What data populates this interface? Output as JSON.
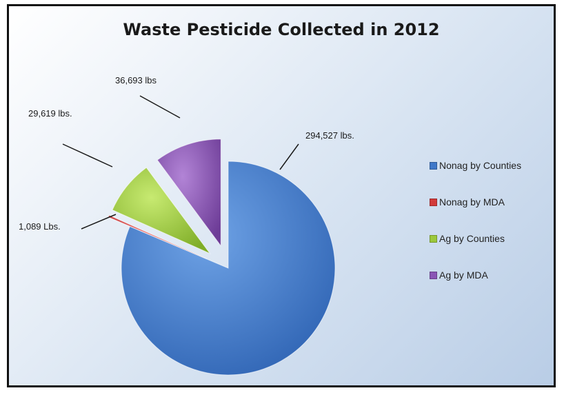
{
  "chart_data": {
    "type": "pie",
    "title": "Waste Pesticide Collected in 2012",
    "legend_position": "right",
    "slices": [
      {
        "name": "Nonag by Counties",
        "value": 294527,
        "label": "294,527 lbs.",
        "color": "#3f78c9"
      },
      {
        "name": "Nonag by MDA",
        "value": 1089,
        "label": "1,089 Lbs.",
        "color": "#d23a3a"
      },
      {
        "name": "Ag by Counties",
        "value": 29619,
        "label": "29,619 lbs.",
        "color": "#9cc83b"
      },
      {
        "name": "Ag by MDA",
        "value": 36693,
        "label": "36,693 lbs",
        "color": "#8a55b5"
      }
    ]
  }
}
